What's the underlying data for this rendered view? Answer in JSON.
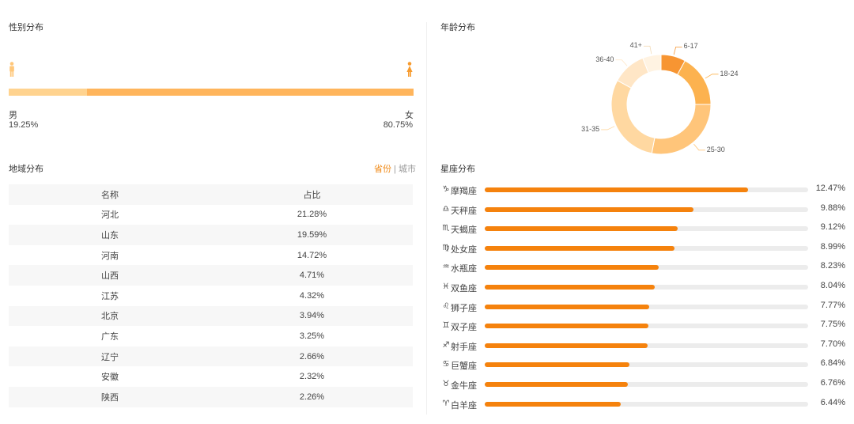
{
  "gender": {
    "title": "性别分布",
    "male_label": "男",
    "male_value": "19.25%",
    "male_fraction": 0.1925,
    "female_label": "女",
    "female_value": "80.75%",
    "male_color": "#ffd38f",
    "female_color": "#ffb55c"
  },
  "region": {
    "title": "地域分布",
    "toggle": {
      "province": "省份",
      "separator": "|",
      "city": "城市"
    },
    "columns": [
      "名称",
      "占比"
    ],
    "rows": [
      [
        "河北",
        "21.28%"
      ],
      [
        "山东",
        "19.59%"
      ],
      [
        "河南",
        "14.72%"
      ],
      [
        "山西",
        "4.71%"
      ],
      [
        "江苏",
        "4.32%"
      ],
      [
        "北京",
        "3.94%"
      ],
      [
        "广东",
        "3.25%"
      ],
      [
        "辽宁",
        "2.66%"
      ],
      [
        "安徽",
        "2.32%"
      ],
      [
        "陕西",
        "2.26%"
      ]
    ]
  },
  "age": {
    "title": "年龄分布",
    "chart_data": {
      "type": "pie",
      "variant": "donut",
      "categories": [
        "6-17",
        "18-24",
        "25-30",
        "31-35",
        "36-40",
        "41+"
      ],
      "values": [
        8,
        17,
        28,
        30,
        11,
        6
      ],
      "colors": [
        "#f79532",
        "#fcb24f",
        "#ffc57a",
        "#ffd8a1",
        "#ffe6c6",
        "#fff3e2"
      ]
    }
  },
  "zodiac": {
    "title": "星座分布",
    "max_value": 15.3,
    "items": [
      {
        "icon": "♑",
        "icon_name": "capricorn-icon",
        "name": "摩羯座",
        "value": "12.47%",
        "v": 12.47
      },
      {
        "icon": "♎",
        "icon_name": "libra-icon",
        "name": "天秤座",
        "value": "9.88%",
        "v": 9.88
      },
      {
        "icon": "♏",
        "icon_name": "scorpio-icon",
        "name": "天蝎座",
        "value": "9.12%",
        "v": 9.12
      },
      {
        "icon": "♍",
        "icon_name": "virgo-icon",
        "name": "处女座",
        "value": "8.99%",
        "v": 8.99
      },
      {
        "icon": "♒",
        "icon_name": "aquarius-icon",
        "name": "水瓶座",
        "value": "8.23%",
        "v": 8.23
      },
      {
        "icon": "♓",
        "icon_name": "pisces-icon",
        "name": "双鱼座",
        "value": "8.04%",
        "v": 8.04
      },
      {
        "icon": "♌",
        "icon_name": "leo-icon",
        "name": "狮子座",
        "value": "7.77%",
        "v": 7.77
      },
      {
        "icon": "♊",
        "icon_name": "gemini-icon",
        "name": "双子座",
        "value": "7.75%",
        "v": 7.75
      },
      {
        "icon": "♐",
        "icon_name": "sagittarius-icon",
        "name": "射手座",
        "value": "7.70%",
        "v": 7.7
      },
      {
        "icon": "♋",
        "icon_name": "cancer-icon",
        "name": "巨蟹座",
        "value": "6.84%",
        "v": 6.84
      },
      {
        "icon": "♉",
        "icon_name": "taurus-icon",
        "name": "金牛座",
        "value": "6.76%",
        "v": 6.76
      },
      {
        "icon": "♈",
        "icon_name": "aries-icon",
        "name": "白羊座",
        "value": "6.44%",
        "v": 6.44
      }
    ],
    "bar_color": "#f5820d",
    "track_color": "#ececec"
  }
}
